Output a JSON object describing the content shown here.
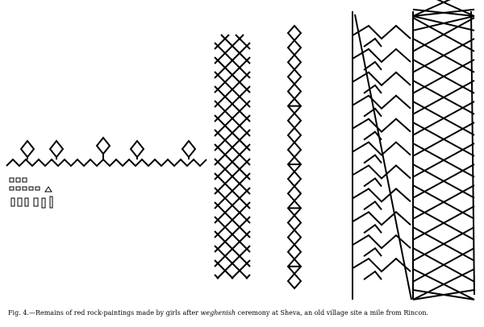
{
  "figure": {
    "label": "Fig. 4.",
    "caption_before": "—Remains of red rock-paintings made by girls after weghenish ceremony at Sheva, an old village site a mile from Rincon.",
    "italic_word": "weghenish",
    "caption_part1": "—Remains of red rock-paintings made by girls after ",
    "caption_part2": " ceremony at Sheva, an old village site a mile from Rincon."
  },
  "colors": {
    "ink": "#000000",
    "paper": "#ffffff"
  },
  "paintings": [
    {
      "name": "zigzag-with-diamonds"
    },
    {
      "name": "small-marks-cluster"
    },
    {
      "name": "diamond-lattice-column"
    },
    {
      "name": "diamond-chain-column"
    },
    {
      "name": "chevron-panel"
    },
    {
      "name": "crosshatch-panel"
    }
  ]
}
